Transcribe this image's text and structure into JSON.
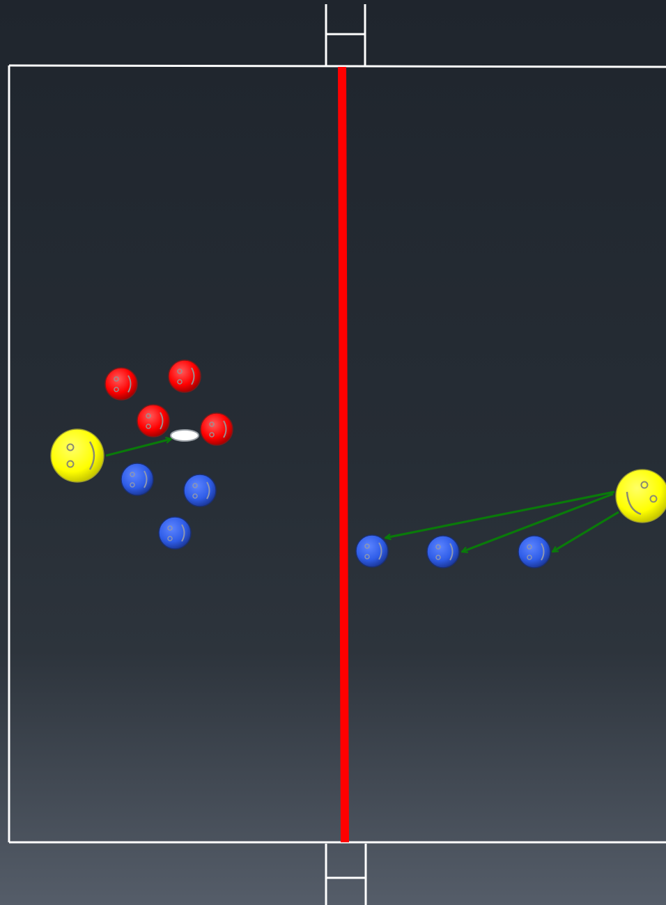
{
  "colors": {
    "background_top": "#1f252d",
    "background_bottom": "#555d69",
    "court_lines": "#ffffff",
    "center_line": "#ff0000",
    "arrows": "#0a7a0a",
    "coach": "#ffff00",
    "team_red": "#ff0000",
    "team_blue": "#2f5de8",
    "ball": "#ffffff"
  },
  "diagram": {
    "type": "drill-diagram",
    "elements": [
      "court-boundary",
      "center-line",
      "top-ladder",
      "bottom-ladder",
      "coach-left",
      "coach-right",
      "ball",
      "red-players",
      "blue-players",
      "pass-arrows"
    ]
  },
  "players": {
    "coaches": [
      "yellow-smiley",
      "yellow-smiley"
    ],
    "red_count": 4,
    "blue_count_left": 3,
    "blue_count_right": 3
  }
}
